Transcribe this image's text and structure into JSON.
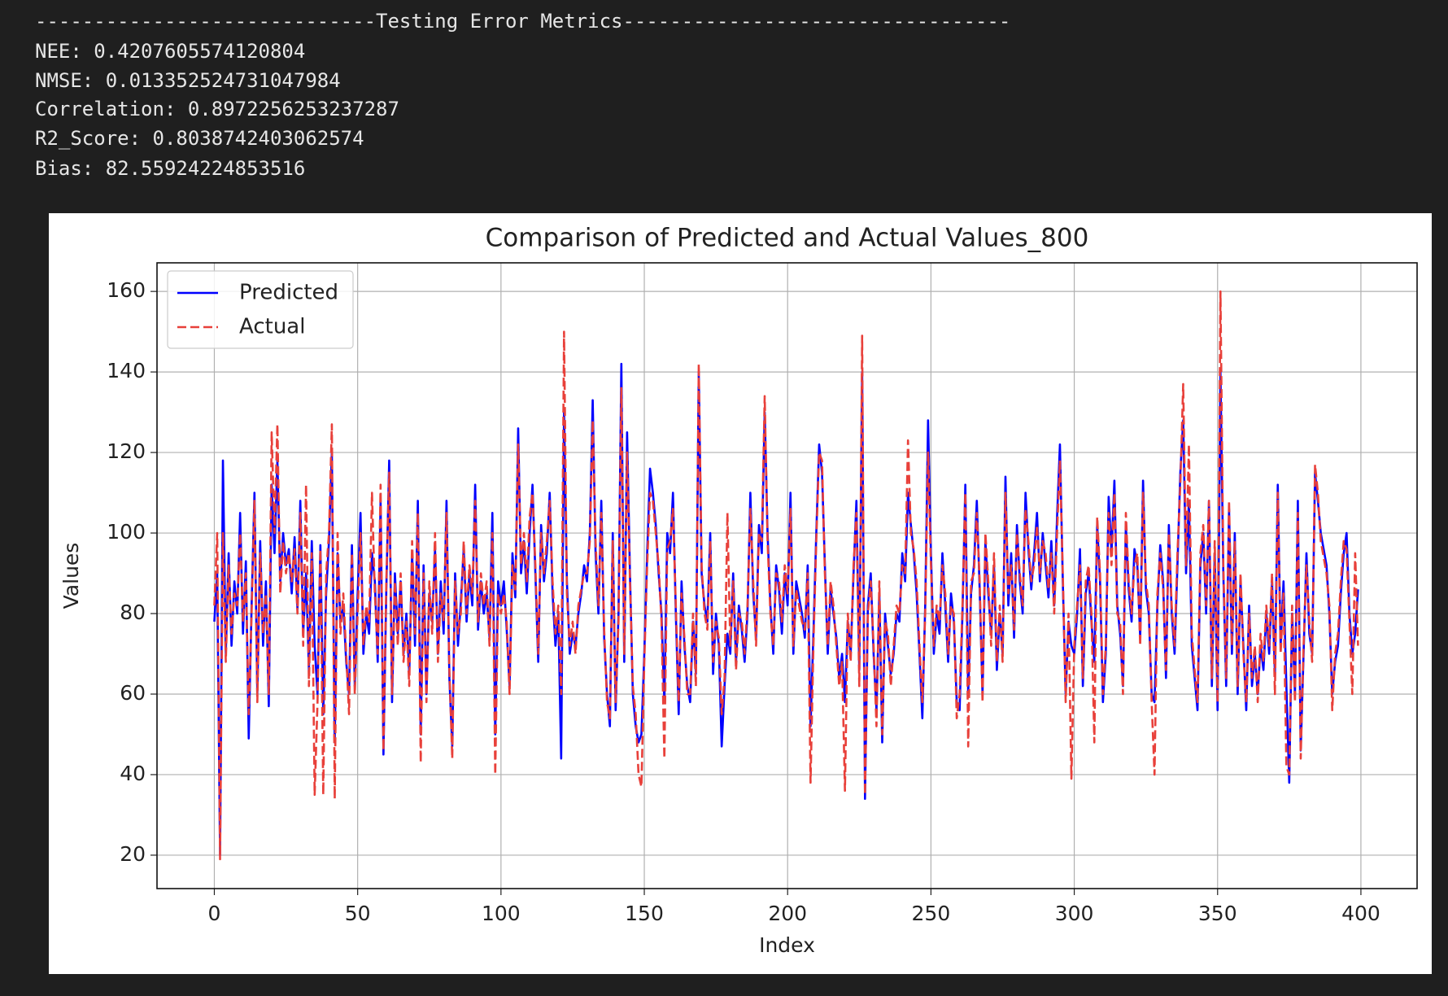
{
  "output": {
    "lines": [
      "-----------------------------Testing Error Metrics---------------------------------",
      "NEE: 0.4207605574120804",
      "NMSE: 0.013352524731047984",
      "Correlation: 0.8972256253237287",
      "R2_Score: 0.8038742403062574",
      "Bias: 82.55924224853516"
    ]
  },
  "chart_data": {
    "type": "line",
    "title": "Comparison of Predicted and Actual Values_800",
    "x_label": "Index",
    "y_label": "Values",
    "xlim": [
      -20,
      419.6
    ],
    "ylim": [
      11.7,
      167.1
    ],
    "xticks": [
      0,
      50,
      100,
      150,
      200,
      250,
      300,
      350,
      400
    ],
    "yticks": [
      20,
      40,
      60,
      80,
      100,
      120,
      140,
      160
    ],
    "grid": true,
    "legend": "upper left",
    "x": [
      0,
      1,
      2,
      3,
      4,
      5,
      6,
      7,
      8,
      9,
      10,
      11,
      12,
      13,
      14,
      15,
      16,
      17,
      18,
      19,
      20,
      21,
      22,
      23,
      24,
      25,
      26,
      27,
      28,
      29,
      30,
      31,
      32,
      33,
      34,
      35,
      36,
      37,
      38,
      39,
      40,
      41,
      42,
      43,
      44,
      45,
      46,
      47,
      48,
      49,
      50,
      51,
      52,
      53,
      54,
      55,
      56,
      57,
      58,
      59,
      60,
      61,
      62,
      63,
      64,
      65,
      66,
      67,
      68,
      69,
      70,
      71,
      72,
      73,
      74,
      75,
      76,
      77,
      78,
      79,
      80,
      81,
      82,
      83,
      84,
      85,
      86,
      87,
      88,
      89,
      90,
      91,
      92,
      93,
      94,
      95,
      96,
      97,
      98,
      99,
      100,
      101,
      102,
      103,
      104,
      105,
      106,
      107,
      108,
      109,
      110,
      111,
      112,
      113,
      114,
      115,
      116,
      117,
      118,
      119,
      120,
      121,
      122,
      123,
      124,
      125,
      126,
      127,
      128,
      129,
      130,
      131,
      132,
      133,
      134,
      135,
      136,
      137,
      138,
      139,
      140,
      141,
      142,
      143,
      144,
      145,
      146,
      147,
      148,
      149,
      150,
      151,
      152,
      153,
      154,
      155,
      156,
      157,
      158,
      159,
      160,
      161,
      162,
      163,
      164,
      165,
      166,
      167,
      168,
      169,
      170,
      171,
      172,
      173,
      174,
      175,
      176,
      177,
      178,
      179,
      180,
      181,
      182,
      183,
      184,
      185,
      186,
      187,
      188,
      189,
      190,
      191,
      192,
      193,
      194,
      195,
      196,
      197,
      198,
      199,
      200,
      201,
      202,
      203,
      204,
      205,
      206,
      207,
      208,
      209,
      210,
      211,
      212,
      213,
      214,
      215,
      216,
      217,
      218,
      219,
      220,
      221,
      222,
      223,
      224,
      225,
      226,
      227,
      228,
      229,
      230,
      231,
      232,
      233,
      234,
      235,
      236,
      237,
      238,
      239,
      240,
      241,
      242,
      243,
      244,
      245,
      246,
      247,
      248,
      249,
      250,
      251,
      252,
      253,
      254,
      255,
      256,
      257,
      258,
      259,
      260,
      261,
      262,
      263,
      264,
      265,
      266,
      267,
      268,
      269,
      270,
      271,
      272,
      273,
      274,
      275,
      276,
      277,
      278,
      279,
      280,
      281,
      282,
      283,
      284,
      285,
      286,
      287,
      288,
      289,
      290,
      291,
      292,
      293,
      294,
      295,
      296,
      297,
      298,
      299,
      300,
      301,
      302,
      303,
      304,
      305,
      306,
      307,
      308,
      309,
      310,
      311,
      312,
      313,
      314,
      315,
      316,
      317,
      318,
      319,
      320,
      321,
      322,
      323,
      324,
      325,
      326,
      327,
      328,
      329,
      330,
      331,
      332,
      333,
      334,
      335,
      336,
      337,
      338,
      339,
      340,
      341,
      342,
      343,
      344,
      345,
      346,
      347,
      348,
      349,
      350,
      351,
      352,
      353,
      354,
      355,
      356,
      357,
      358,
      359,
      360,
      361,
      362,
      363,
      364,
      365,
      366,
      367,
      368,
      369,
      370,
      371,
      372,
      373,
      374,
      375,
      376,
      377,
      378,
      379,
      380,
      381,
      382,
      383,
      384,
      385,
      386,
      387,
      388,
      389,
      390,
      391,
      392,
      393,
      394,
      395,
      396,
      397,
      398,
      399
    ],
    "series": [
      {
        "name": "Predicted",
        "color": "#0000ff",
        "dash": false,
        "values": [
          78,
          90,
          20,
          118,
          70,
          95,
          72,
          88,
          80,
          105,
          75,
          93,
          49,
          82,
          110,
          60,
          98,
          72,
          88,
          57,
          112,
          95,
          118,
          88,
          100,
          92,
          96,
          85,
          99,
          81,
          108,
          75,
          90,
          66,
          98,
          72,
          60,
          97,
          55,
          85,
          98,
          120,
          48,
          95,
          78,
          82,
          68,
          60,
          97,
          62,
          85,
          105,
          70,
          80,
          75,
          95,
          88,
          68,
          108,
          45,
          86,
          118,
          58,
          90,
          75,
          88,
          70,
          80,
          65,
          95,
          72,
          108,
          50,
          92,
          60,
          85,
          78,
          96,
          70,
          88,
          75,
          108,
          64,
          47,
          90,
          72,
          83,
          96,
          78,
          90,
          82,
          112,
          76,
          88,
          80,
          85,
          74,
          105,
          50,
          88,
          82,
          88,
          76,
          62,
          95,
          84,
          126,
          90,
          98,
          85,
          100,
          112,
          90,
          68,
          102,
          88,
          95,
          110,
          85,
          72,
          80,
          44,
          130,
          88,
          70,
          75,
          72,
          80,
          85,
          92,
          88,
          100,
          133,
          95,
          80,
          108,
          74,
          60,
          52,
          100,
          56,
          80,
          142,
          68,
          125,
          90,
          60,
          52,
          48,
          50,
          70,
          95,
          116,
          110,
          102,
          90,
          80,
          58,
          100,
          95,
          110,
          80,
          55,
          88,
          72,
          62,
          58,
          78,
          65,
          140,
          90,
          82,
          78,
          100,
          65,
          80,
          72,
          47,
          62,
          75,
          70,
          90,
          68,
          82,
          76,
          68,
          80,
          110,
          85,
          74,
          102,
          95,
          130,
          100,
          82,
          70,
          92,
          86,
          75,
          90,
          82,
          110,
          70,
          88,
          84,
          80,
          74,
          92,
          52,
          75,
          100,
          122,
          115,
          92,
          70,
          86,
          80,
          74,
          64,
          70,
          58,
          78,
          70,
          90,
          108,
          66,
          140,
          34,
          82,
          90,
          70,
          56,
          85,
          48,
          80,
          72,
          65,
          70,
          80,
          78,
          95,
          88,
          110,
          102,
          95,
          85,
          70,
          54,
          82,
          128,
          95,
          70,
          80,
          75,
          95,
          82,
          68,
          85,
          78,
          58,
          56,
          80,
          112,
          60,
          85,
          92,
          108,
          86,
          60,
          98,
          85,
          75,
          92,
          66,
          80,
          70,
          114,
          82,
          95,
          74,
          102,
          88,
          80,
          110,
          96,
          86,
          95,
          105,
          88,
          100,
          92,
          84,
          98,
          82,
          104,
          122,
          88,
          60,
          78,
          72,
          70,
          80,
          96,
          62,
          85,
          90,
          78,
          68,
          102,
          88,
          58,
          70,
          109,
          95,
          113,
          82,
          75,
          62,
          102,
          86,
          78,
          96,
          92,
          74,
          113,
          86,
          80,
          60,
          58,
          82,
          97,
          88,
          64,
          102,
          80,
          70,
          92,
          115,
          128,
          90,
          108,
          72,
          64,
          56,
          92,
          100,
          80,
          108,
          62,
          95,
          56,
          140,
          90,
          62,
          106,
          70,
          100,
          60,
          88,
          72,
          56,
          82,
          62,
          70,
          60,
          72,
          66,
          80,
          70,
          88,
          65,
          112,
          72,
          88,
          62,
          38,
          80,
          60,
          108,
          46,
          70,
          95,
          75,
          70,
          115,
          108,
          100,
          96,
          92,
          80,
          60,
          68,
          72,
          85,
          95,
          100,
          80,
          70,
          75,
          86
        ]
      },
      {
        "name": "Actual",
        "color": "#e8403a",
        "dash": true,
        "values": [
          82,
          100,
          19,
          100,
          68,
          92,
          75,
          85,
          82,
          100,
          78,
          90,
          55,
          80,
          108,
          58,
          95,
          75,
          85,
          60,
          125,
          100,
          127,
          85,
          98,
          90,
          95,
          88,
          96,
          80,
          105,
          72,
          112,
          62,
          95,
          35,
          58,
          96,
          35,
          90,
          100,
          127,
          34,
          100,
          75,
          85,
          70,
          55,
          95,
          60,
          80,
          100,
          72,
          82,
          78,
          110,
          85,
          70,
          112,
          46,
          88,
          115,
          60,
          88,
          72,
          90,
          68,
          78,
          62,
          98,
          75,
          105,
          43,
          90,
          58,
          88,
          75,
          100,
          68,
          85,
          78,
          105,
          66,
          44,
          88,
          75,
          80,
          98,
          80,
          92,
          85,
          108,
          78,
          90,
          82,
          88,
          72,
          100,
          40,
          85,
          80,
          85,
          78,
          60,
          92,
          86,
          122,
          92,
          100,
          88,
          104,
          110,
          92,
          70,
          100,
          90,
          98,
          108,
          88,
          75,
          82,
          60,
          150,
          85,
          72,
          78,
          70,
          82,
          86,
          90,
          90,
          98,
          128,
          98,
          82,
          105,
          76,
          58,
          54,
          98,
          58,
          78,
          136,
          70,
          120,
          88,
          62,
          55,
          40,
          37,
          68,
          92,
          110,
          108,
          100,
          92,
          78,
          44,
          96,
          98,
          106,
          82,
          58,
          85,
          74,
          60,
          60,
          80,
          62,
          142,
          92,
          80,
          76,
          98,
          68,
          78,
          74,
          55,
          64,
          105,
          72,
          88,
          66,
          80,
          78,
          70,
          82,
          106,
          88,
          72,
          100,
          98,
          134,
          98,
          80,
          72,
          90,
          88,
          78,
          92,
          85,
          106,
          72,
          86,
          82,
          78,
          76,
          90,
          38,
          72,
          98,
          120,
          118,
          90,
          72,
          88,
          82,
          72,
          62,
          68,
          36,
          80,
          68,
          92,
          105,
          62,
          149,
          35,
          80,
          88,
          72,
          52,
          88,
          50,
          78,
          75,
          62,
          72,
          82,
          80,
          92,
          90,
          123,
          100,
          96,
          88,
          72,
          58,
          80,
          120,
          92,
          72,
          82,
          78,
          92,
          85,
          70,
          82,
          80,
          54,
          60,
          82,
          110,
          47,
          88,
          90,
          105,
          88,
          58,
          100,
          88,
          72,
          95,
          68,
          82,
          68,
          110,
          85,
          92,
          76,
          100,
          90,
          82,
          106,
          98,
          88,
          92,
          102,
          90,
          98,
          95,
          86,
          95,
          80,
          100,
          118,
          90,
          58,
          80,
          39,
          72,
          82,
          92,
          64,
          88,
          92,
          80,
          48,
          104,
          90,
          60,
          72,
          105,
          92,
          110,
          80,
          78,
          60,
          105,
          88,
          80,
          92,
          95,
          72,
          110,
          88,
          82,
          58,
          40,
          85,
          95,
          86,
          66,
          100,
          82,
          72,
          95,
          112,
          137,
          92,
          122,
          75,
          66,
          58,
          95,
          102,
          82,
          108,
          64,
          98,
          58,
          160,
          92,
          64,
          108,
          72,
          98,
          62,
          90,
          70,
          58,
          80,
          64,
          72,
          58,
          75,
          68,
          82,
          72,
          90,
          60,
          110,
          70,
          85,
          42,
          40,
          82,
          58,
          105,
          44,
          72,
          92,
          78,
          68,
          117,
          110,
          98,
          94,
          90,
          82,
          56,
          70,
          75,
          88,
          98,
          96,
          78,
          60,
          95,
          72
        ]
      }
    ]
  }
}
